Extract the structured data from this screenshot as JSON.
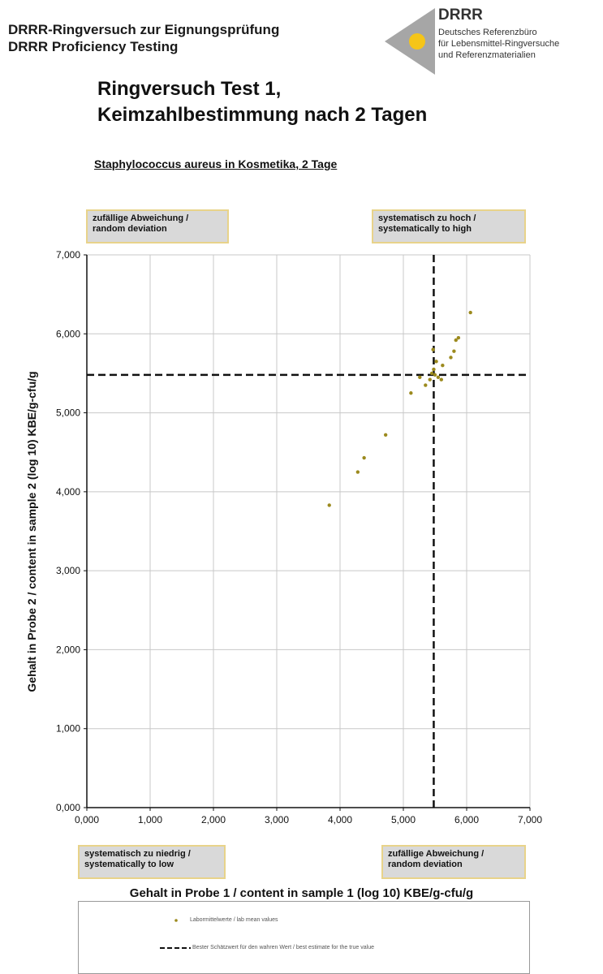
{
  "header": {
    "line1": "DRRR-Ringversuch zur Eignungsprüfung",
    "line2": "DRRR Proficiency Testing"
  },
  "logo": {
    "name": "DRRR",
    "sub1": "Deutsches Referenzbüro",
    "sub2": "für Lebensmittel-Ringversuche",
    "sub3": "und Referenzmaterialien",
    "gray": "#a6a6a6",
    "yellow": "#f5c518"
  },
  "title": {
    "line1": "Ringversuch Test 1,",
    "line2": "Keimzahlbestimmung nach 2 Tagen"
  },
  "quadrants": {
    "top_left": {
      "de": "zufällige Abweichung /",
      "en": "random deviation"
    },
    "top_right": {
      "de": "systematisch zu hoch /",
      "en": "systematically to high"
    },
    "bottom_left": {
      "de": "systematisch zu niedrig /",
      "en": "systematically to low"
    },
    "bottom_right": {
      "de": "zufällige Abweichung /",
      "en": "random deviation"
    }
  },
  "legend": {
    "points": "Labormittelwerte / lab mean values",
    "line": "Bester Schätzwert für den wahren Wert / best estimate for the true value"
  },
  "chart_data": {
    "type": "scatter",
    "title": "Staphylococcus aureus in Kosmetika, 2 Tage",
    "xlabel": "Gehalt in Probe 1 / content in sample 1 (log 10) KBE/g-cfu/g",
    "ylabel": "Gehalt in Probe 2 / content in sample 2 (log 10) KBE/g-cfu/g",
    "xlim": [
      0,
      7
    ],
    "ylim": [
      0,
      7
    ],
    "xticks": [
      "0,000",
      "1,000",
      "2,000",
      "3,000",
      "4,000",
      "5,000",
      "6,000",
      "7,000"
    ],
    "yticks": [
      "0,000",
      "1,000",
      "2,000",
      "3,000",
      "4,000",
      "5,000",
      "6,000",
      "7,000"
    ],
    "grid": true,
    "point_color": "#9c8a1e",
    "best_estimate": {
      "x": 5.48,
      "y": 5.48
    },
    "series": [
      {
        "x": [
          3.83,
          4.28,
          4.38,
          4.72,
          5.12,
          5.26,
          5.35,
          5.42,
          5.45,
          5.47,
          5.48,
          5.5,
          5.52,
          5.55,
          5.6,
          5.62,
          5.75,
          5.8,
          5.83,
          5.87,
          6.06
        ],
        "y": [
          3.83,
          4.25,
          4.43,
          4.72,
          5.25,
          5.45,
          5.35,
          5.42,
          5.5,
          5.8,
          5.55,
          5.48,
          5.65,
          5.45,
          5.42,
          5.6,
          5.7,
          5.78,
          5.92,
          5.95,
          6.27
        ]
      }
    ]
  }
}
